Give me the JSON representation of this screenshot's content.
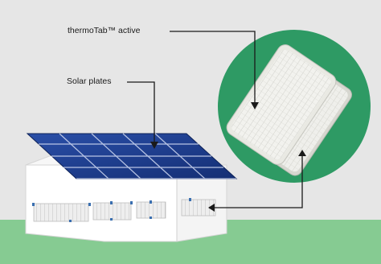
{
  "labels": {
    "thermotab": "thermoTab™ active",
    "solar": "Solar plates"
  },
  "colors": {
    "background": "#e6e6e6",
    "ground": "#86cb92",
    "circle": "#2e9a64",
    "solar_panel": "#1a3d8c",
    "house_wall": "#ffffff"
  },
  "icons": {
    "thermotab_pad": "thermotab-pad-icon",
    "solar_panel": "solar-panel-icon",
    "house": "house-icon"
  }
}
